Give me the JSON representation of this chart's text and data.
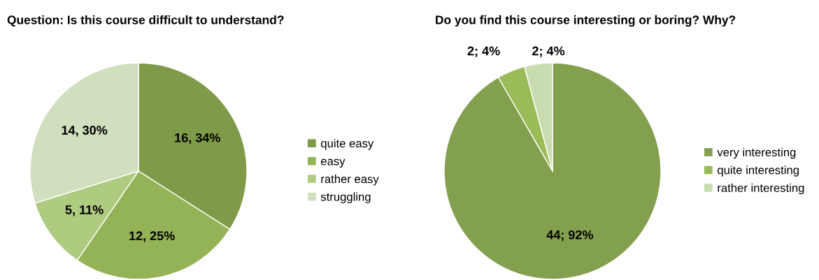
{
  "chart_data": [
    {
      "type": "pie",
      "title": "Question: Is this course difficult to understand?",
      "categories": [
        "quite easy",
        "easy",
        "rather easy",
        "struggling"
      ],
      "values": [
        16,
        12,
        5,
        14
      ],
      "value_labels": [
        "16, 34%",
        "12, 25%",
        "5, 11%",
        "14, 30%"
      ],
      "colors": [
        "#7f9a48",
        "#94b356",
        "#aecb7f",
        "#d0dfbd"
      ],
      "legend": "right"
    },
    {
      "type": "pie",
      "title": "Do you find this course interesting or boring? Why?",
      "categories": [
        "very interesting",
        "quite interesting",
        "rather interesting"
      ],
      "values": [
        44,
        2,
        2
      ],
      "value_labels": [
        "44; 92%",
        "2; 4%",
        "2; 4%"
      ],
      "colors": [
        "#82a04e",
        "#9bbb59",
        "#c8dcb0"
      ],
      "legend": "right"
    }
  ]
}
